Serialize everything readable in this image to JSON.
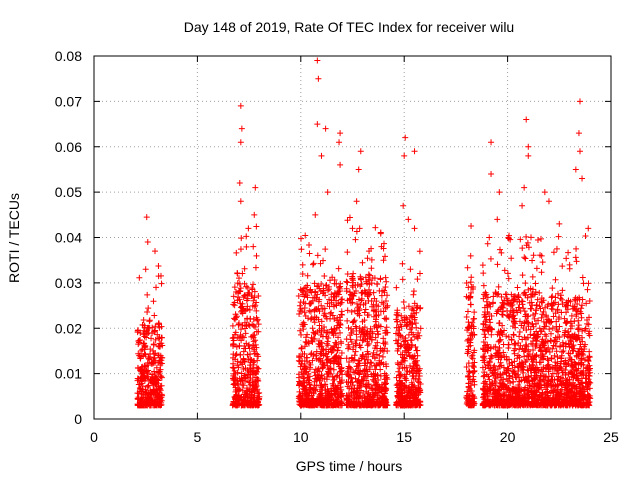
{
  "chart_data": {
    "type": "scatter",
    "title": "Day 148 of 2019, Rate Of TEC Index for receiver wilu",
    "xlabel": "GPS time / hours",
    "ylabel": "ROTI / TECUs",
    "xlim": [
      0,
      25
    ],
    "ylim": [
      0,
      0.08
    ],
    "x_ticks": [
      "0",
      "5",
      "10",
      "15",
      "20",
      "25"
    ],
    "y_ticks": [
      "0",
      "0.01",
      "0.02",
      "0.03",
      "0.04",
      "0.05",
      "0.06",
      "0.07",
      "0.08"
    ],
    "grid": true,
    "marker": "+",
    "color": "#ff0000",
    "series": [
      {
        "name": "ROTI",
        "clusters": [
          {
            "x_range": [
              2.1,
              3.3
            ],
            "typical_max": 0.022,
            "peaks": [
              [
                2.55,
                0.0445
              ],
              [
                2.6,
                0.039
              ],
              [
                2.95,
                0.037
              ],
              [
                3.0,
                0.029
              ],
              [
                2.5,
                0.033
              ]
            ]
          },
          {
            "x_range": [
              6.7,
              8.0
            ],
            "typical_max": 0.03,
            "peaks": [
              [
                7.1,
                0.069
              ],
              [
                7.15,
                0.064
              ],
              [
                7.1,
                0.061
              ],
              [
                7.05,
                0.052
              ],
              [
                7.1,
                0.048
              ],
              [
                7.8,
                0.051
              ],
              [
                7.75,
                0.045
              ],
              [
                7.7,
                0.038
              ]
            ]
          },
          {
            "x_range": [
              9.9,
              12.0
            ],
            "typical_max": 0.03,
            "peaks": [
              [
                10.8,
                0.079
              ],
              [
                10.85,
                0.075
              ],
              [
                10.8,
                0.065
              ],
              [
                11.2,
                0.064
              ],
              [
                11.3,
                0.05
              ],
              [
                11.0,
                0.058
              ],
              [
                10.7,
                0.045
              ],
              [
                11.9,
                0.063
              ],
              [
                11.85,
                0.061
              ],
              [
                11.9,
                0.056
              ]
            ]
          },
          {
            "x_range": [
              12.2,
              14.2
            ],
            "typical_max": 0.032,
            "peaks": [
              [
                12.9,
                0.059
              ],
              [
                12.8,
                0.055
              ],
              [
                12.7,
                0.048
              ],
              [
                12.5,
                0.042
              ],
              [
                13.3,
                0.037
              ],
              [
                13.9,
                0.038
              ],
              [
                14.0,
                0.035
              ]
            ]
          },
          {
            "x_range": [
              14.6,
              15.8
            ],
            "typical_max": 0.025,
            "peaks": [
              [
                15.05,
                0.062
              ],
              [
                15.0,
                0.058
              ],
              [
                15.5,
                0.059
              ],
              [
                14.95,
                0.047
              ],
              [
                15.2,
                0.044
              ],
              [
                15.5,
                0.042
              ],
              [
                15.3,
                0.033
              ]
            ]
          },
          {
            "x_range": [
              18.0,
              18.4
            ],
            "typical_max": 0.03,
            "peaks": [
              [
                18.1,
                0.029
              ],
              [
                18.2,
                0.027
              ],
              [
                18.1,
                0.02
              ]
            ]
          },
          {
            "x_range": [
              18.8,
              24.0
            ],
            "typical_max": 0.028,
            "peaks": [
              [
                19.2,
                0.061
              ],
              [
                19.2,
                0.054
              ],
              [
                20.9,
                0.066
              ],
              [
                21.0,
                0.06
              ],
              [
                21.0,
                0.058
              ],
              [
                20.8,
                0.051
              ],
              [
                20.7,
                0.047
              ],
              [
                23.5,
                0.07
              ],
              [
                23.45,
                0.063
              ],
              [
                23.5,
                0.059
              ],
              [
                23.3,
                0.055
              ],
              [
                23.6,
                0.053
              ],
              [
                23.9,
                0.042
              ],
              [
                22.0,
                0.048
              ],
              [
                21.8,
                0.05
              ],
              [
                22.5,
                0.043
              ],
              [
                19.6,
                0.05
              ],
              [
                19.5,
                0.044
              ]
            ]
          }
        ]
      }
    ]
  }
}
